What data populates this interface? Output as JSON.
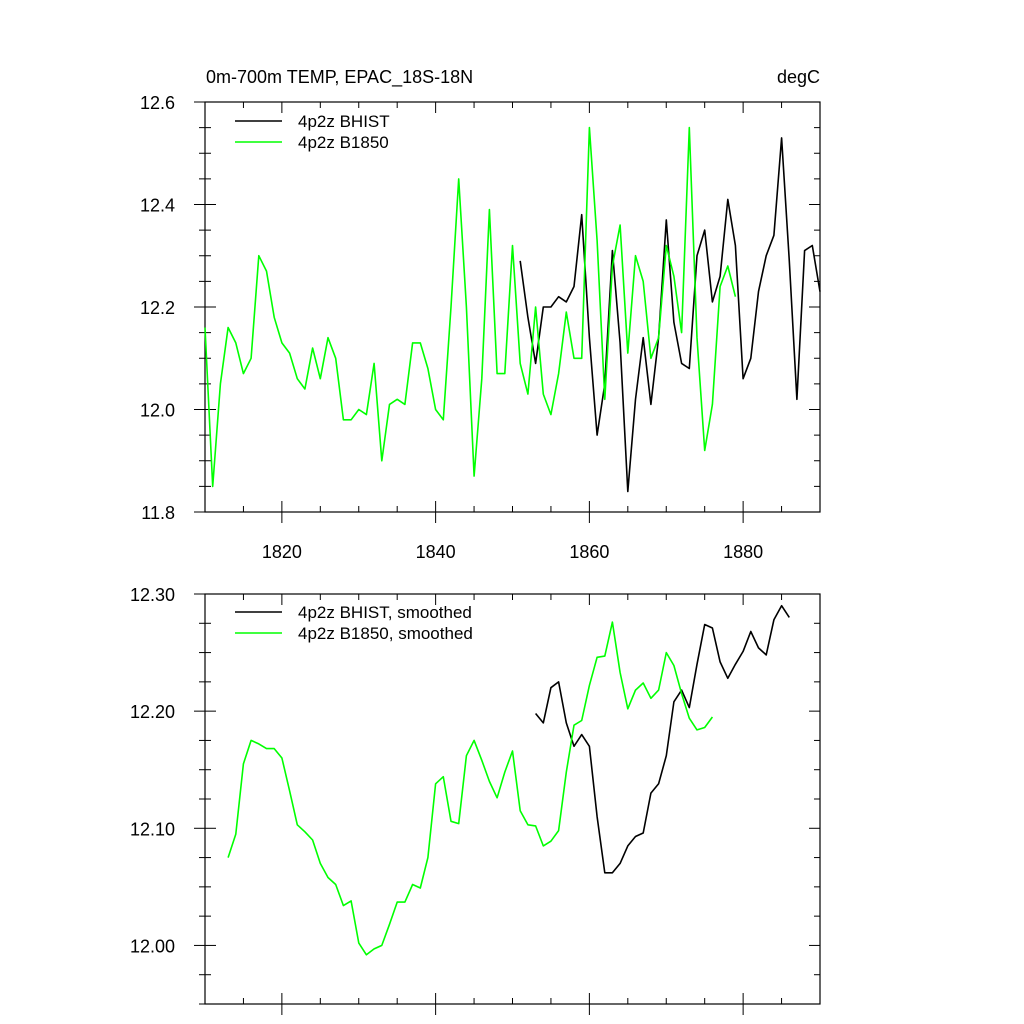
{
  "chart_data": [
    {
      "type": "line",
      "title": "0m-700m TEMP, EPAC_18S-18N",
      "units": "degC",
      "xlim": [
        1810,
        1890
      ],
      "ylim": [
        11.8,
        12.6
      ],
      "xticks": [
        1820,
        1840,
        1860,
        1880
      ],
      "yticks": [
        11.8,
        12.0,
        12.2,
        12.4,
        12.6
      ],
      "ytick_labels": [
        "11.8",
        "12.0",
        "12.2",
        "12.4",
        "12.6"
      ],
      "legend": "top-left",
      "series": [
        {
          "name": "4p2z BHIST",
          "color": "#000000",
          "x_start": 1851,
          "values": [
            12.29,
            12.18,
            12.09,
            12.2,
            12.2,
            12.22,
            12.21,
            12.24,
            12.38,
            12.14,
            11.95,
            12.05,
            12.31,
            12.13,
            11.84,
            12.02,
            12.14,
            12.01,
            12.14,
            12.37,
            12.17,
            12.09,
            12.08,
            12.3,
            12.35,
            12.21,
            12.26,
            12.41,
            12.32,
            12.06,
            12.1,
            12.23,
            12.3,
            12.34,
            12.53,
            12.29,
            12.02,
            12.31,
            12.32,
            12.23
          ]
        },
        {
          "name": "4p2z B1850",
          "color": "#00ff00",
          "x_start": 1810,
          "values": [
            12.16,
            11.85,
            12.05,
            12.16,
            12.13,
            12.07,
            12.1,
            12.3,
            12.27,
            12.18,
            12.13,
            12.11,
            12.06,
            12.04,
            12.12,
            12.06,
            12.14,
            12.1,
            11.98,
            11.98,
            12.0,
            11.99,
            12.09,
            11.9,
            12.01,
            12.02,
            12.01,
            12.13,
            12.13,
            12.08,
            12.0,
            11.98,
            12.2,
            12.45,
            12.2,
            11.87,
            12.06,
            12.39,
            12.07,
            12.07,
            12.32,
            12.09,
            12.03,
            12.2,
            12.03,
            11.99,
            12.07,
            12.19,
            12.1,
            12.1,
            12.55,
            12.33,
            12.02,
            12.28,
            12.36,
            12.11,
            12.3,
            12.25,
            12.1,
            12.14,
            12.32,
            12.26,
            12.15,
            12.55,
            12.14,
            11.92,
            12.01,
            12.24,
            12.28,
            12.22
          ]
        }
      ]
    },
    {
      "type": "line",
      "xlim": [
        1810,
        1890
      ],
      "ylim": [
        11.95,
        12.3
      ],
      "xticks": [
        1820,
        1840,
        1860,
        1880
      ],
      "yticks": [
        12.0,
        12.1,
        12.2,
        12.3
      ],
      "ytick_labels": [
        "12.00",
        "12.10",
        "12.20",
        "12.30"
      ],
      "legend": "top-left",
      "series": [
        {
          "name": "4p2z BHIST, smoothed",
          "color": "#000000",
          "x_start": 1853,
          "values": [
            12.198,
            12.19,
            12.22,
            12.225,
            12.19,
            12.17,
            12.18,
            12.17,
            12.11,
            12.062,
            12.062,
            12.07,
            12.085,
            12.093,
            12.096,
            12.13,
            12.138,
            12.162,
            12.208,
            12.218,
            12.203,
            12.24,
            12.274,
            12.271,
            12.242,
            12.228,
            12.24,
            12.251,
            12.268,
            12.254,
            12.248,
            12.278,
            12.29,
            12.28
          ]
        },
        {
          "name": "4p2z B1850, smoothed",
          "color": "#00ff00",
          "x_start": 1813,
          "values": [
            12.075,
            12.095,
            12.155,
            12.175,
            12.172,
            12.168,
            12.168,
            12.16,
            12.132,
            12.103,
            12.097,
            12.09,
            12.07,
            12.058,
            12.052,
            12.034,
            12.038,
            12.002,
            11.992,
            11.997,
            12.0,
            12.018,
            12.037,
            12.037,
            12.052,
            12.049,
            12.075,
            12.138,
            12.144,
            12.106,
            12.104,
            12.162,
            12.175,
            12.158,
            12.14,
            12.126,
            12.148,
            12.166,
            12.115,
            12.103,
            12.102,
            12.085,
            12.089,
            12.098,
            12.148,
            12.188,
            12.192,
            12.222,
            12.246,
            12.247,
            12.276,
            12.233,
            12.202,
            12.218,
            12.224,
            12.211,
            12.218,
            12.25,
            12.239,
            12.215,
            12.194,
            12.184,
            12.186,
            12.195
          ]
        }
      ]
    }
  ]
}
